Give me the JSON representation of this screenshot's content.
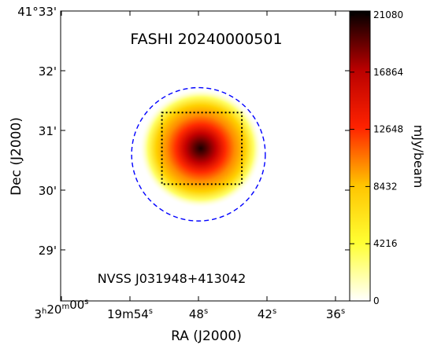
{
  "chart_data": {
    "type": "heatmap",
    "title": "FASHI 20240000501",
    "annotation": "NVSS J031948+413042",
    "xlabel": "RA (J2000)",
    "ylabel": "Dec (J2000)",
    "x_ticks": [
      {
        "base": "3",
        "h": "h",
        "m": "20",
        "mm": "m",
        "s": "00",
        "ss": "s",
        "ra_sec": 0
      },
      {
        "base": "19",
        "m": "m",
        "s": "54",
        "ss": "s",
        "ra_sec": -6
      },
      {
        "base": "48",
        "s": "s",
        "ra_sec": -12
      },
      {
        "base": "42",
        "s": "s",
        "ra_sec": -18
      },
      {
        "base": "36",
        "s": "s",
        "ra_sec": -24
      }
    ],
    "y_ticks": [
      "41°33'",
      "32'",
      "31'",
      "30'",
      "29'"
    ],
    "y_tick_arcmin": [
      33,
      32,
      31,
      30,
      29
    ],
    "colorbar": {
      "label": "mJy/beam",
      "ticks": [
        "21080",
        "16864",
        "12648",
        "8432",
        "4216",
        "0"
      ],
      "min": 0,
      "max": 21080,
      "colormap": "hot_r"
    },
    "source": {
      "ra_sec": -12.2,
      "dec_arcmin": 30.7,
      "peak": 21080
    },
    "beam_circle": {
      "ra_sec": -12,
      "dec_arcmin": 30.6,
      "radius_arcmin": 1.45,
      "color": "#0000ff",
      "style": "dashed"
    },
    "box": {
      "ra_sec_range": [
        -8.8,
        -15.8
      ],
      "dec_arcmin_range": [
        30.1,
        31.3
      ],
      "color": "#000000",
      "style": "dotted"
    }
  }
}
